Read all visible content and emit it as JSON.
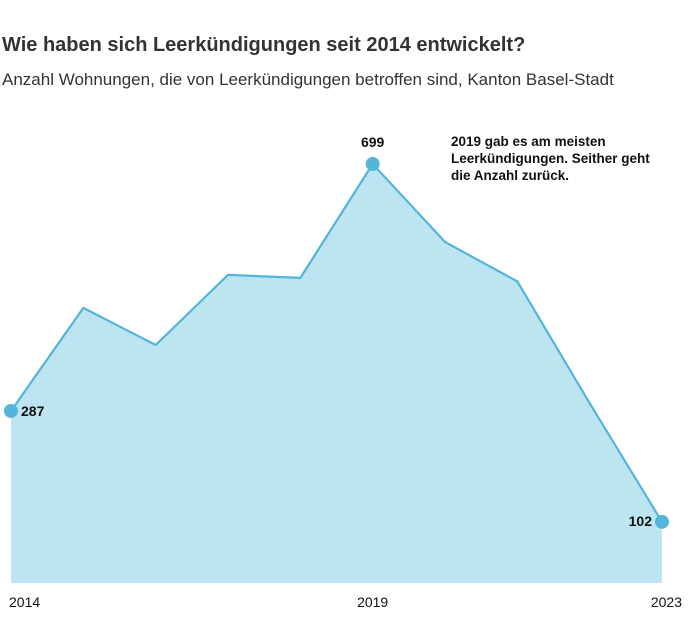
{
  "title": "Wie haben sich Leerkündigungen seit 2014 entwickelt?",
  "subtitle": "Anzahl Wohnungen, die von Leerkündigungen betroffen sind, Kanton Basel-Stadt",
  "annotation": "2019 gab es am meisten Leerkündigungen. Seither geht die Anzahl zurück.",
  "colors": {
    "line": "#52b5d9",
    "area": "#bde4f1"
  },
  "chart_data": {
    "type": "area",
    "x": [
      2014,
      2015,
      2016,
      2017,
      2018,
      2019,
      2020,
      2021,
      2022,
      2023
    ],
    "values": [
      287,
      459,
      397,
      514,
      509,
      699,
      569,
      503,
      300,
      102
    ],
    "ylim": [
      0,
      699
    ],
    "xticks": [
      "2014",
      "2019",
      "2023"
    ],
    "data_labels": [
      {
        "x": 2014,
        "label": "287"
      },
      {
        "x": 2019,
        "label": "699"
      },
      {
        "x": 2023,
        "label": "102"
      }
    ],
    "grid": false
  }
}
